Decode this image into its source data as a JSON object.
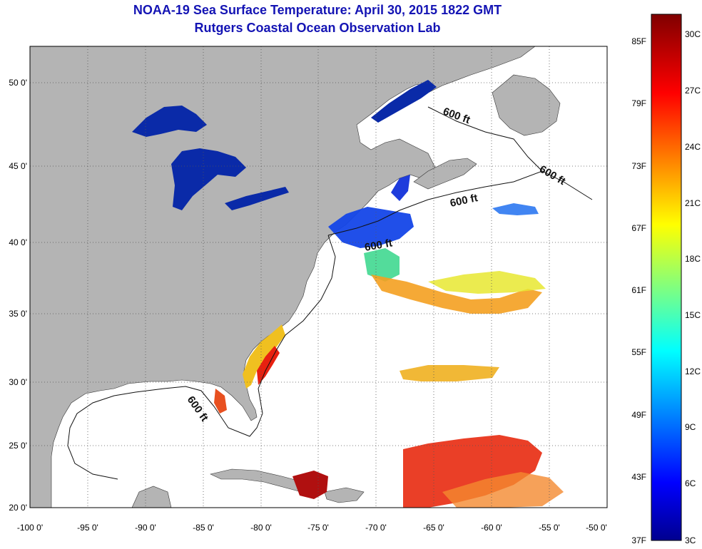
{
  "title": "NOAA-19 Sea Surface Temperature:  April 30, 2015 1822 GMT",
  "subtitle": "Rutgers Coastal Ocean Observation Lab",
  "map": {
    "lon_range": [
      -100,
      -50
    ],
    "lat_range": [
      20,
      52
    ],
    "lon_ticks": [
      "-100 0'",
      "-95 0'",
      "-90 0'",
      "-85 0'",
      "-80 0'",
      "-75 0'",
      "-70 0'",
      "-65 0'",
      "-60 0'",
      "-55 0'",
      "-50 0'"
    ],
    "lat_ticks": [
      "20 0'",
      "25 0'",
      "30 0'",
      "35 0'",
      "40 0'",
      "45 0'",
      "50 0'"
    ],
    "grid": "dotted",
    "land_color": "#b4b4b4",
    "water_color": "#ffffff",
    "depth_contour_label": "600 ft",
    "depth_contour_labels": [
      "600 ft",
      "600 ft",
      "600 ft",
      "600 ft",
      "600 ft"
    ]
  },
  "colorbar": {
    "f_labels": [
      "85F",
      "79F",
      "73F",
      "67F",
      "61F",
      "55F",
      "49F",
      "43F",
      "37F"
    ],
    "c_labels": [
      "30C",
      "27C",
      "24C",
      "21C",
      "18C",
      "15C",
      "12C",
      "9C",
      "6C",
      "3C"
    ],
    "colormap": "jet",
    "colors": [
      "#00008f",
      "#0000ff",
      "#0080ff",
      "#00ffff",
      "#80ff80",
      "#ffff00",
      "#ff8000",
      "#ff0000",
      "#800000"
    ]
  }
}
